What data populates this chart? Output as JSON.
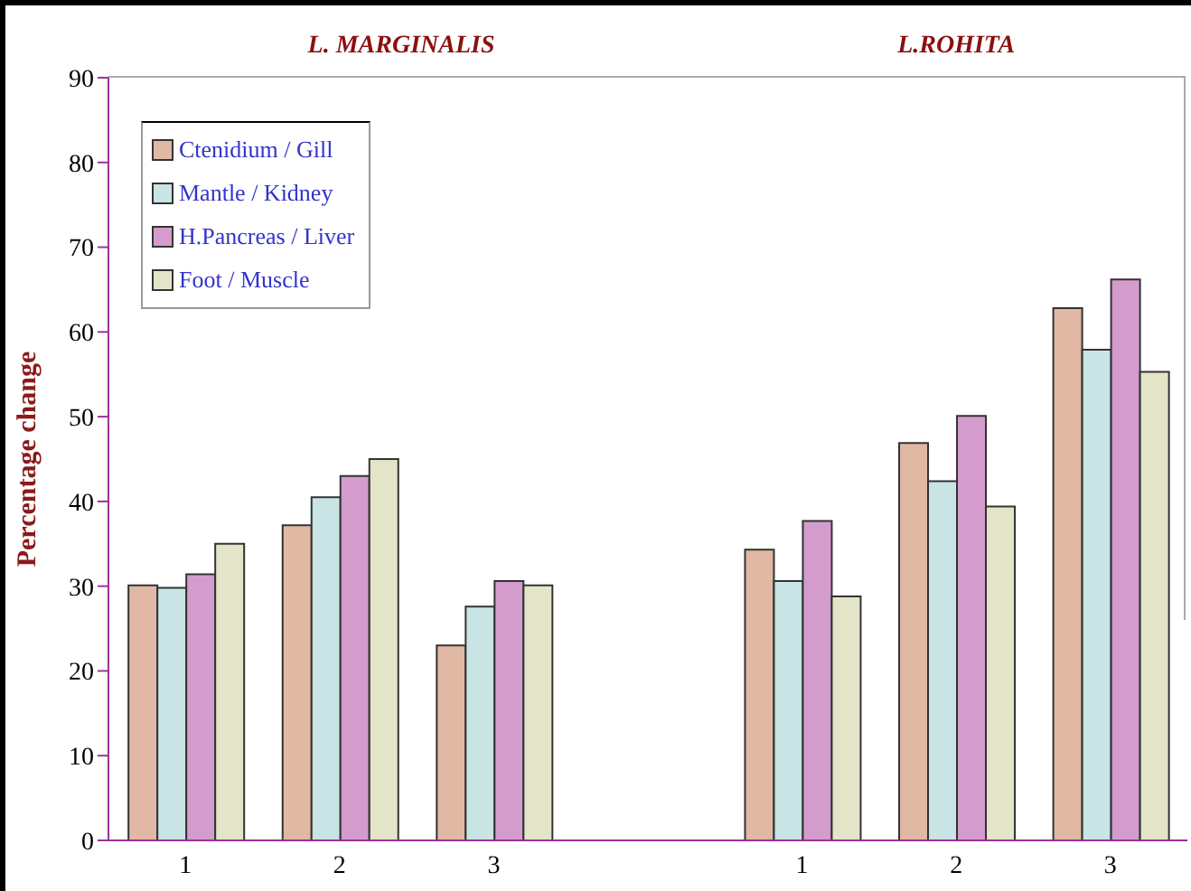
{
  "chart_data": {
    "type": "bar",
    "ylabel": "Percentage change",
    "annotations": [
      "L. MARGINALIS",
      "L.ROHITA"
    ],
    "categories": [
      "1",
      "2",
      "3",
      null,
      "1",
      "2",
      "3"
    ],
    "series": [
      {
        "name": "Ctenidium / Gill",
        "color": "#e0b8a4",
        "values": [
          30.1,
          37.2,
          23.0,
          null,
          34.3,
          46.9,
          62.8
        ]
      },
      {
        "name": "Mantle / Kidney",
        "color": "#c8e4e4",
        "values": [
          29.8,
          40.5,
          27.6,
          null,
          30.6,
          42.4,
          57.9
        ]
      },
      {
        "name": "H.Pancreas / Liver",
        "color": "#d49ccc",
        "values": [
          31.4,
          43.0,
          30.6,
          null,
          37.7,
          50.1,
          66.2
        ]
      },
      {
        "name": "Foot / Muscle",
        "color": "#e4e4c8",
        "values": [
          35.0,
          45.0,
          30.1,
          null,
          28.8,
          39.4,
          55.3
        ]
      }
    ],
    "ylim": [
      0,
      90
    ],
    "yticks": [
      0,
      10,
      20,
      30,
      40,
      50,
      60,
      70,
      80,
      90
    ],
    "legend": "top left"
  }
}
